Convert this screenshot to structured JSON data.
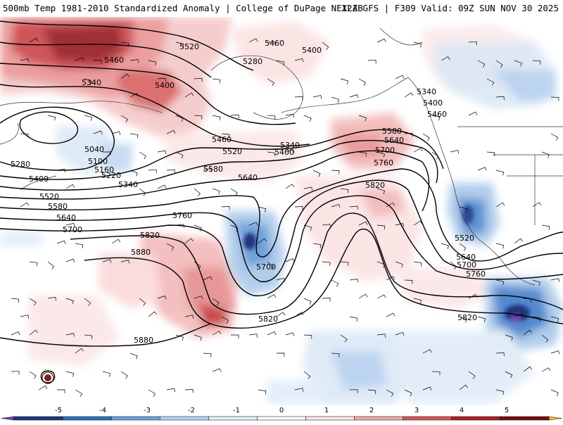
{
  "header": {
    "left": "500mb Temp 1981-2010 Standardized Anomaly | College of DuPage NEXLAB",
    "right": "12Z GFS | F309 Valid: 09Z SUN NOV 30 2025"
  },
  "colorbar": {
    "ticks": [
      "-5",
      "-4",
      "-3",
      "-2",
      "-1",
      "0",
      "1",
      "2",
      "3",
      "4",
      "5"
    ],
    "colors": [
      "#7b3fb8",
      "#23347a",
      "#2f6fbe",
      "#6aa3dc",
      "#b7d2ee",
      "#e6eff9",
      "#ffffff",
      "#fbe4e4",
      "#eeaaaa",
      "#d65858",
      "#b01e22",
      "#7a0a10",
      "#f2c12e"
    ]
  },
  "contour_labels": [
    {
      "text": "5520"
    },
    {
      "text": "5460"
    },
    {
      "text": "5400"
    },
    {
      "text": "5280"
    },
    {
      "text": "5460"
    },
    {
      "text": "5340"
    },
    {
      "text": "5400"
    },
    {
      "text": "5040"
    },
    {
      "text": "5100"
    },
    {
      "text": "5160"
    },
    {
      "text": "5220"
    },
    {
      "text": "5280"
    },
    {
      "text": "5340"
    },
    {
      "text": "5400"
    },
    {
      "text": "5520"
    },
    {
      "text": "5580"
    },
    {
      "text": "5640"
    },
    {
      "text": "5700"
    },
    {
      "text": "5460"
    },
    {
      "text": "5520"
    },
    {
      "text": "5340"
    },
    {
      "text": "5400"
    },
    {
      "text": "5580"
    },
    {
      "text": "5640"
    },
    {
      "text": "5760"
    },
    {
      "text": "5700"
    },
    {
      "text": "5820"
    },
    {
      "text": "5880"
    },
    {
      "text": "5820"
    },
    {
      "text": "5880"
    },
    {
      "text": "5580"
    },
    {
      "text": "5640"
    },
    {
      "text": "5700"
    },
    {
      "text": "5760"
    },
    {
      "text": "5820"
    },
    {
      "text": "5340"
    },
    {
      "text": "5400"
    },
    {
      "text": "5460"
    },
    {
      "text": "5520"
    },
    {
      "text": "5640"
    },
    {
      "text": "5700"
    },
    {
      "text": "5760"
    },
    {
      "text": "5820"
    }
  ]
}
